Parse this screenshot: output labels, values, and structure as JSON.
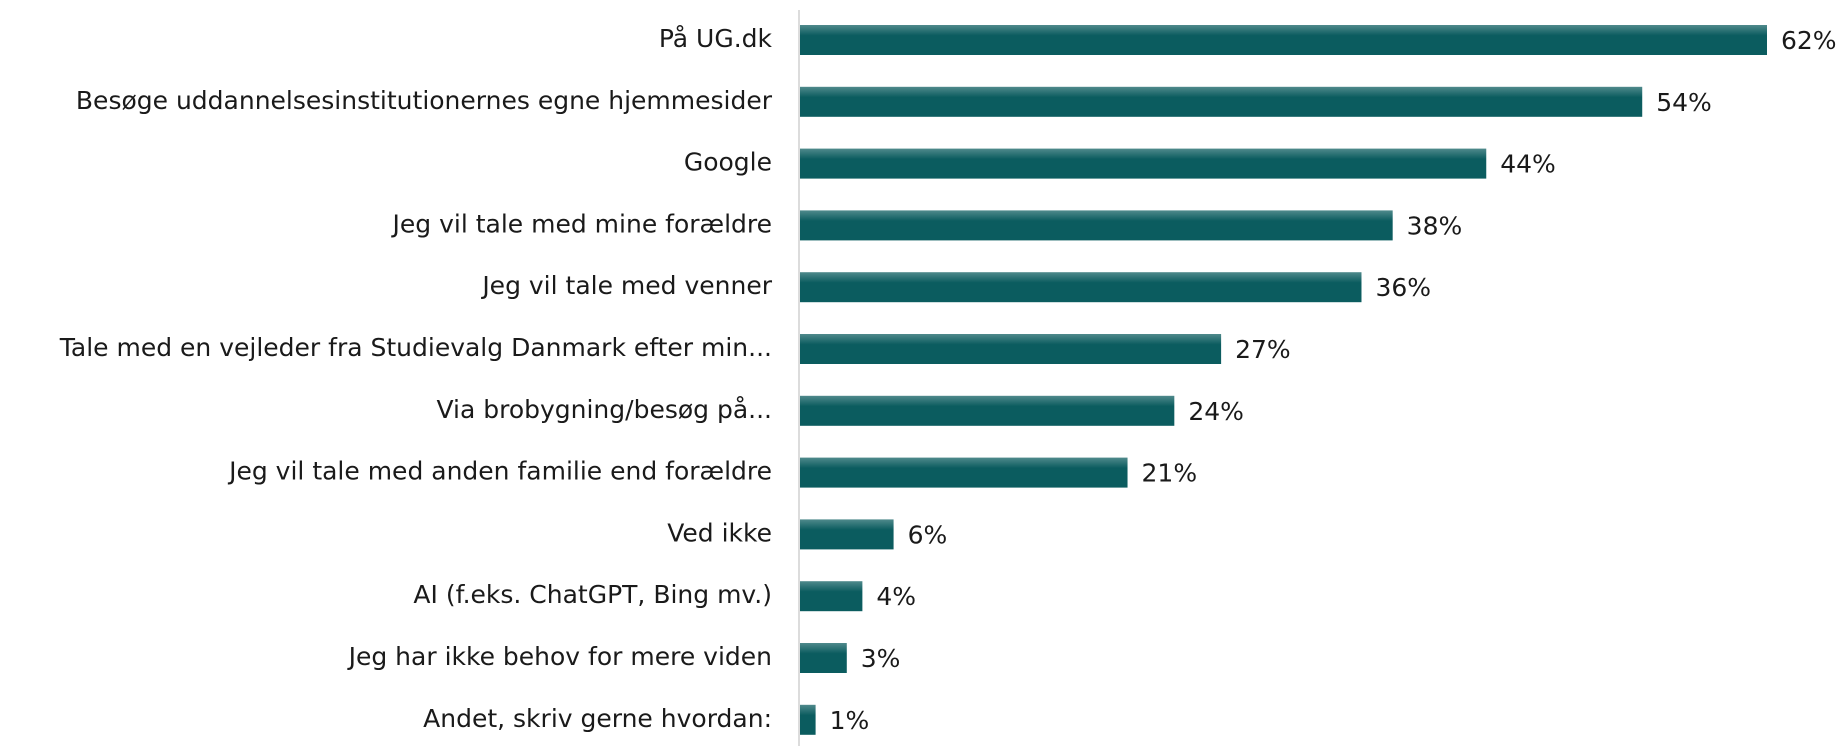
{
  "chart_data": {
    "type": "bar",
    "orientation": "horizontal",
    "categories": [
      "På UG.dk",
      "Besøge uddannelsesinstitutionernes egne hjemmesider",
      "Google",
      "Jeg vil tale med mine forældre",
      "Jeg vil tale med venner",
      "Tale med en vejleder fra Studievalg Danmark efter min...",
      "Via brobygning/besøg på...",
      "Jeg vil tale med anden familie end forældre",
      "Ved ikke",
      "AI (f.eks. ChatGPT, Bing mv.)",
      "Jeg har ikke behov for mere viden",
      "Andet, skriv gerne hvordan:"
    ],
    "values": [
      62,
      54,
      44,
      38,
      36,
      27,
      24,
      21,
      6,
      4,
      3,
      1
    ],
    "value_labels": [
      "62%",
      "54%",
      "44%",
      "38%",
      "36%",
      "27%",
      "24%",
      "21%",
      "6%",
      "4%",
      "3%",
      "1%"
    ],
    "color": "#0b5c5f"
  }
}
